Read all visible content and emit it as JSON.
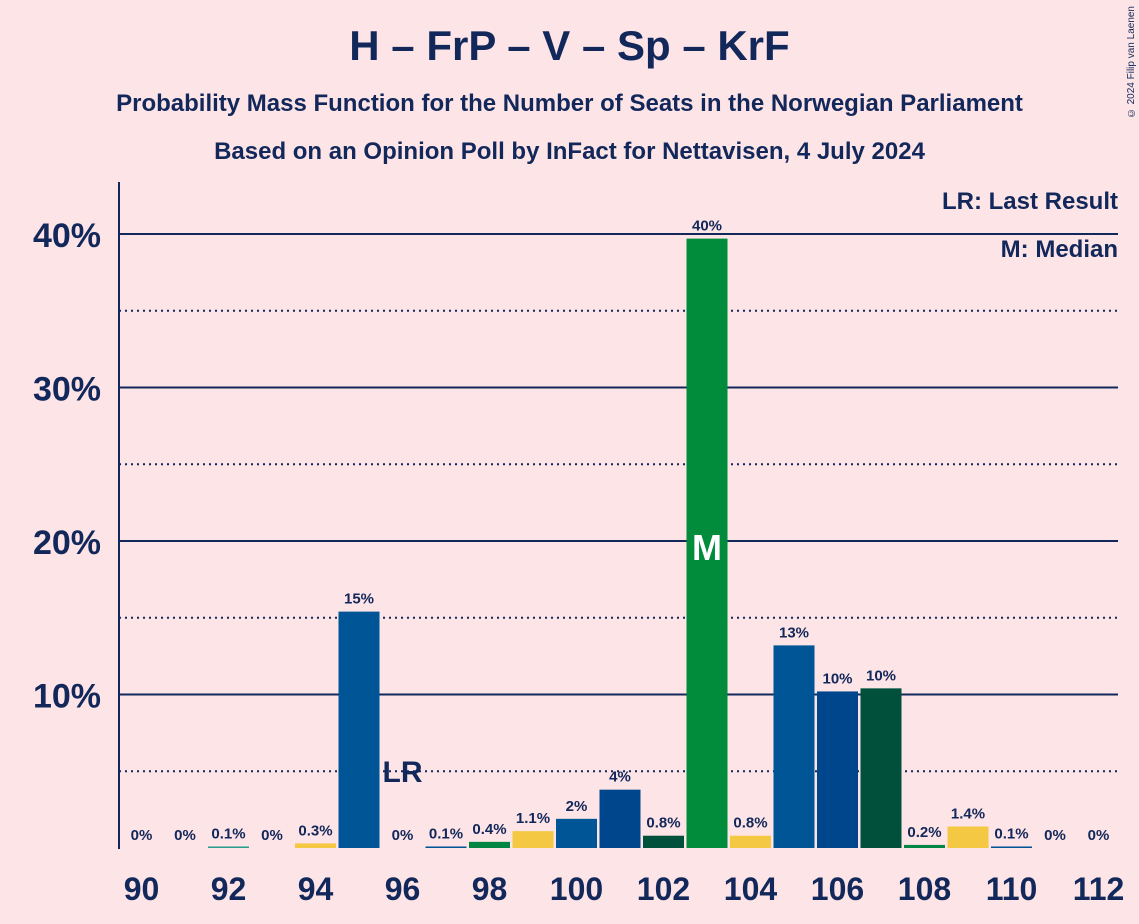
{
  "title": "H – FrP – V – Sp – KrF",
  "subtitle_line1": "Probability Mass Function for the Number of Seats in the Norwegian Parliament",
  "subtitle_line2": "Based on an Opinion Poll by InFact for Nettavisen, 4 July 2024",
  "copyright": "© 2024 Filip van Laenen",
  "legend": {
    "last_result": "LR: Last Result",
    "median": "M: Median"
  },
  "chart_data": {
    "type": "bar",
    "categories": [
      90,
      91,
      92,
      93,
      94,
      95,
      96,
      97,
      98,
      99,
      100,
      101,
      102,
      103,
      104,
      105,
      106,
      107,
      108,
      109,
      110,
      111,
      112
    ],
    "values": [
      0,
      0,
      0.1,
      0,
      0.3,
      15.4,
      0,
      0.1,
      0.4,
      1.1,
      1.9,
      3.8,
      0.8,
      39.7,
      0.8,
      13.2,
      10.2,
      10.4,
      0.2,
      1.4,
      0.1,
      0,
      0
    ],
    "value_labels": [
      "0%",
      "0%",
      "0.1%",
      "0%",
      "0.3%",
      "15%",
      "0%",
      "0.1%",
      "0.4%",
      "1.1%",
      "2%",
      "4%",
      "0.8%",
      "40%",
      "0.8%",
      "13%",
      "10%",
      "10%",
      "0.2%",
      "1.4%",
      "0.1%",
      "0%",
      "0%"
    ],
    "bar_colors": [
      "#2a9d8f",
      "#e9c46a",
      "#2a9d8f",
      "#e9c46a",
      "#f4c842",
      "#005596",
      "#00528a",
      "#005596",
      "#008542",
      "#f4c842",
      "#005596",
      "#00468c",
      "#00503c",
      "#008c3a",
      "#f4c842",
      "#005596",
      "#00468c",
      "#00503c",
      "#008542",
      "#f4c842",
      "#005596",
      "#00468c",
      "#00503c"
    ],
    "x_tick_labels": [
      "90",
      "92",
      "94",
      "96",
      "98",
      "100",
      "102",
      "104",
      "106",
      "108",
      "110",
      "112"
    ],
    "y_ticks": [
      10,
      20,
      30,
      40
    ],
    "y_tick_labels": [
      "10%",
      "20%",
      "30%",
      "40%"
    ],
    "ylim": [
      0,
      43.5
    ],
    "last_result": {
      "seat": 96,
      "label": "LR"
    },
    "median": {
      "seat": 103,
      "label": "M"
    },
    "grid": true
  }
}
